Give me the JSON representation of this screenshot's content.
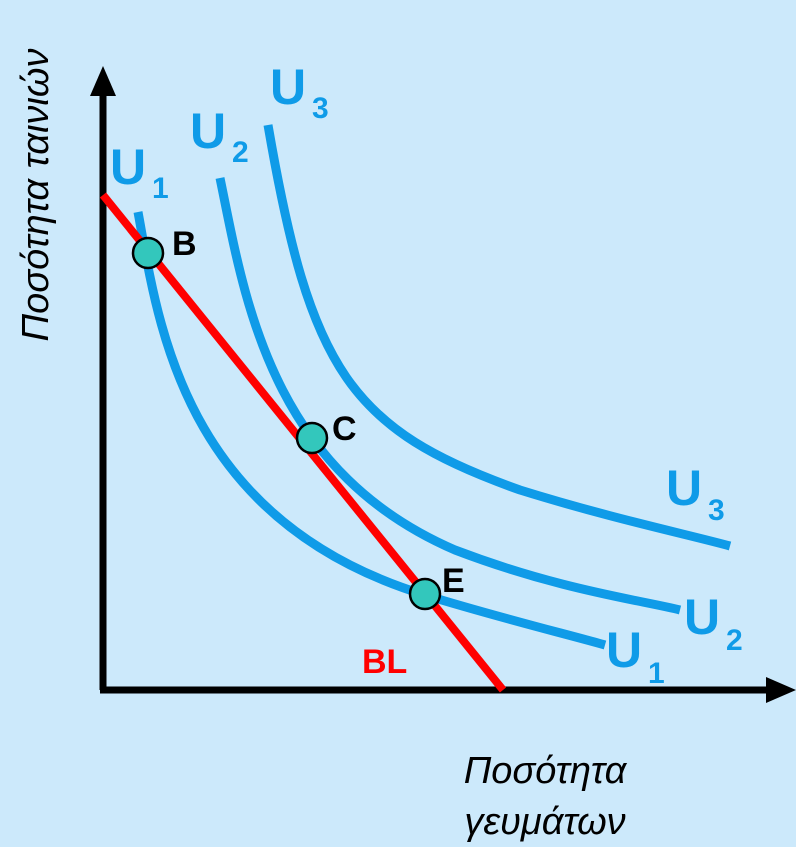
{
  "axes": {
    "y_title": "Ποσότητα ταινιών",
    "x_title_line1": "Ποσότητα",
    "x_title_line2": "γευμάτων"
  },
  "curves": {
    "u1_top": {
      "main": "U",
      "sub": "1"
    },
    "u2_top": {
      "main": "U",
      "sub": "2"
    },
    "u3_top": {
      "main": "U",
      "sub": "3"
    },
    "u1_end": {
      "main": "U",
      "sub": "1"
    },
    "u2_end": {
      "main": "U",
      "sub": "2"
    },
    "u3_end": {
      "main": "U",
      "sub": "3"
    }
  },
  "budget_line_label": "BL",
  "points": {
    "b": "B",
    "c": "C",
    "e": "E"
  },
  "colors": {
    "background": "#cce9fb",
    "indifference_curve": "#0f9be8",
    "budget_line": "#ff0000",
    "point_fill": "#33c7bc",
    "axis": "#000000"
  }
}
